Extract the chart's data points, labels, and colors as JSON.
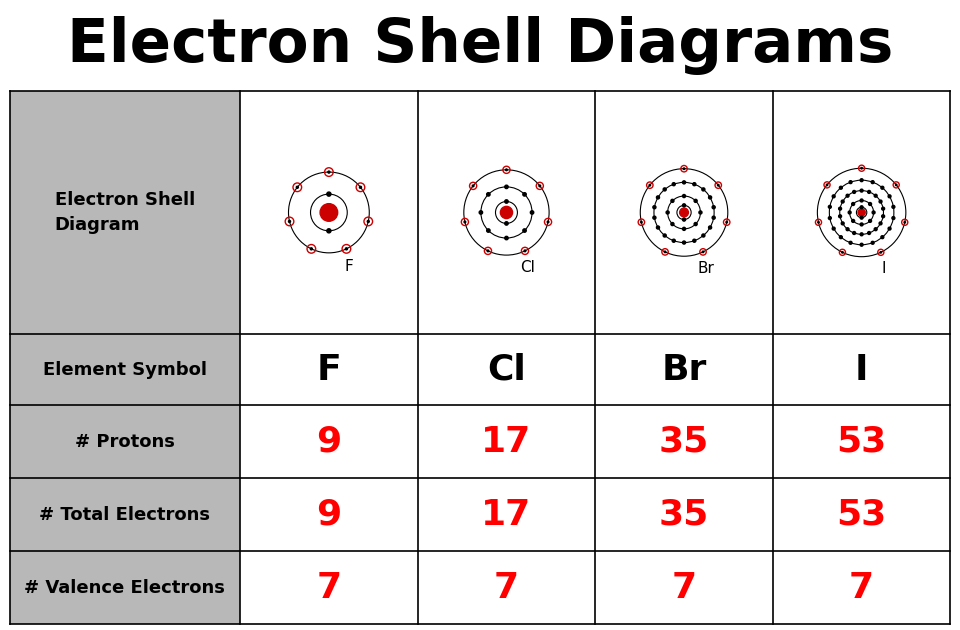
{
  "title": "Electron Shell Diagrams",
  "title_fontsize": 44,
  "title_fontweight": "bold",
  "background_color": "#ffffff",
  "header_bg": "#b8b8b8",
  "red_color": "#ff0000",
  "black_color": "#000000",
  "nucleus_color": "#cc0000",
  "valence_ring_color": "#cc0000",
  "row_labels": [
    "Electron Shell\nDiagram",
    "Element Symbol",
    "# Protons",
    "# Total Electrons",
    "# Valence Electrons"
  ],
  "elements": [
    "F",
    "Cl",
    "Br",
    "I"
  ],
  "protons": [
    "9",
    "17",
    "35",
    "53"
  ],
  "total_electrons": [
    "9",
    "17",
    "35",
    "53"
  ],
  "valence_electrons": [
    "7",
    "7",
    "7",
    "7"
  ],
  "shells": [
    [
      2,
      7
    ],
    [
      2,
      8,
      7
    ],
    [
      2,
      8,
      18,
      7
    ],
    [
      2,
      8,
      18,
      18,
      7
    ]
  ],
  "shell_radii_F": [
    0.25,
    0.55
  ],
  "shell_radii_Cl": [
    0.18,
    0.42,
    0.7
  ],
  "shell_radii_Br": [
    0.13,
    0.3,
    0.55,
    0.8
  ],
  "shell_radii_I": [
    0.1,
    0.23,
    0.42,
    0.62,
    0.85
  ],
  "nucleus_radii": [
    0.12,
    0.1,
    0.08,
    0.07
  ],
  "row_label_fontsize": 13,
  "symbol_fontsize": 26,
  "data_fontsize": 26,
  "elem_label_fontsize": 11
}
